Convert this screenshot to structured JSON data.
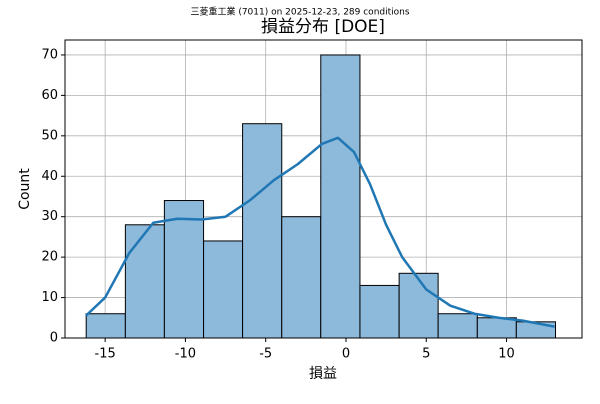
{
  "chart_data": {
    "type": "histogram",
    "suptitle": "三菱重工業 (7011) on 2025-12-23, 289 conditions",
    "title": "損益分布 [DOE]",
    "xlabel": "損益",
    "ylabel": "Count",
    "bins": [
      -16.18,
      -13.74,
      -11.31,
      -8.87,
      -6.44,
      -4.0,
      -1.57,
      0.87,
      3.31,
      5.74,
      8.18,
      10.61,
      13.05
    ],
    "values": [
      6,
      28,
      34,
      24,
      53,
      30,
      70,
      13,
      16,
      6,
      5,
      4
    ],
    "color": "#8db9da",
    "kde": {
      "color": "#1f77b4",
      "x": [
        -16.2,
        -15,
        -13.5,
        -12,
        -10.5,
        -9,
        -7.5,
        -6,
        -4.5,
        -3,
        -1.5,
        -0.5,
        0.5,
        1.5,
        2.5,
        3.5,
        5,
        6.5,
        8,
        9.5,
        11,
        13
      ],
      "values": [
        5.5,
        10,
        21,
        28.5,
        29.5,
        29.3,
        30,
        34,
        39,
        43,
        48,
        49.5,
        46,
        38,
        28,
        20,
        12,
        8,
        6,
        5,
        4.3,
        2.8
      ]
    },
    "xlim": [
      -17.5,
      14.7
    ],
    "ylim": [
      0,
      73.7
    ],
    "xticks": [
      -15,
      -10,
      -5,
      0,
      5,
      10
    ],
    "yticks": [
      0,
      10,
      20,
      30,
      40,
      50,
      60,
      70
    ],
    "grid": true
  }
}
